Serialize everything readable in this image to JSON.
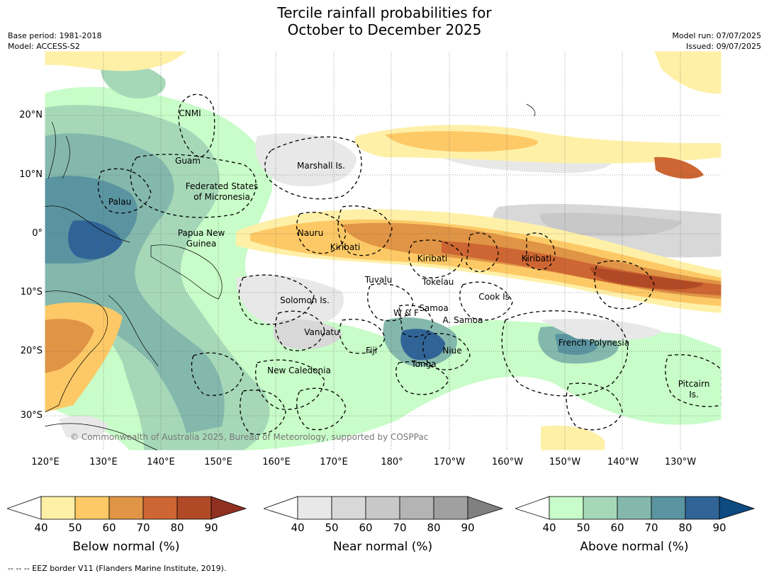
{
  "title_line1": "Tercile rainfall probabilities for",
  "title_line2": "October to December 2025",
  "meta_left": [
    "Base period: 1981-2018",
    "Model: ACCESS-S2"
  ],
  "meta_right": [
    "Model run: 07/07/2025",
    "Issued: 09/07/2025"
  ],
  "map": {
    "lat_labels": [
      "20°N",
      "10°N",
      "0°",
      "10°S",
      "20°S",
      "30°S"
    ],
    "lon_labels": [
      "120°E",
      "130°E",
      "140°E",
      "150°E",
      "160°E",
      "170°E",
      "180°",
      "170°W",
      "160°W",
      "150°W",
      "140°W",
      "130°W"
    ],
    "regions": [
      "CNMI",
      "Guam",
      "Marshall Is.",
      "Federated States",
      "of Micronesia",
      "Palau",
      "Papua New",
      "Guinea",
      "Nauru",
      "Kiribati",
      "Kiribati",
      "Kiribati",
      "Tuvalu",
      "Tokelau",
      "Solomon Is.",
      "W & F",
      "Samoa",
      "A. Samoa",
      "Cook Is.",
      "Vanuatu",
      "Fiji",
      "Niue",
      "Tonga",
      "French Polynesia",
      "New Caledonia",
      "Pitcairn",
      "Is."
    ],
    "copyright": "© Commonwealth of Australia 2025, Bureau of Meteorology, supported by COSPPac"
  },
  "colorbars": [
    {
      "label": "Below normal (%)",
      "ticks": [
        "40",
        "50",
        "60",
        "70",
        "80",
        "90"
      ],
      "colors": [
        "#fff0a8",
        "#fdc966",
        "#e09445",
        "#cd6633",
        "#b04a26",
        "#8f3020"
      ]
    },
    {
      "label": "Near normal (%)",
      "ticks": [
        "40",
        "50",
        "60",
        "70",
        "80",
        "90"
      ],
      "colors": [
        "#e8e8e8",
        "#d8d8d8",
        "#c8c8c8",
        "#b4b4b4",
        "#a0a0a0",
        "#808080"
      ]
    },
    {
      "label": "Above normal (%)",
      "ticks": [
        "40",
        "50",
        "60",
        "70",
        "80",
        "90"
      ],
      "colors": [
        "#c8fcc8",
        "#a6d8b8",
        "#84b8ac",
        "#5a94a0",
        "#316496",
        "#0c4a80"
      ]
    }
  ],
  "footer": "--  --  -- EEZ border V11 (Flanders Marine Institute, 2019)."
}
